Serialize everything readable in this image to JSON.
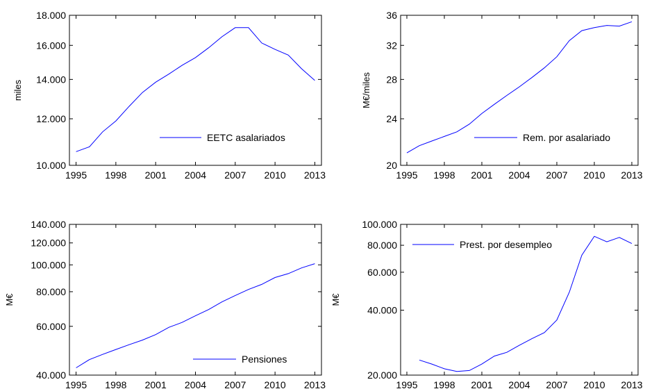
{
  "chart_data": [
    {
      "type": "line",
      "ylabel": "miles",
      "yscale": "log",
      "ylim": [
        10000,
        18000
      ],
      "xlim": [
        1994.5,
        2013.5
      ],
      "y_ticks": [
        {
          "value": 10000,
          "label": "10.000"
        },
        {
          "value": 12000,
          "label": "12.000"
        },
        {
          "value": 14000,
          "label": "14.000"
        },
        {
          "value": 16000,
          "label": "16.000"
        },
        {
          "value": 18000,
          "label": "18.000"
        }
      ],
      "x_ticks": [
        {
          "value": 1995,
          "label": "1995"
        },
        {
          "value": 1998,
          "label": "1998"
        },
        {
          "value": 2001,
          "label": "2001"
        },
        {
          "value": 2004,
          "label": "2004"
        },
        {
          "value": 2007,
          "label": "2007"
        },
        {
          "value": 2010,
          "label": "2010"
        },
        {
          "value": 2013,
          "label": "2013"
        }
      ],
      "legend": "bottom-right",
      "grid": false,
      "x": [
        1995,
        1996,
        1997,
        1998,
        1999,
        2000,
        2001,
        2002,
        2003,
        2004,
        2005,
        2006,
        2007,
        2008,
        2009,
        2010,
        2011,
        2012,
        2013
      ],
      "series": [
        {
          "name": "EETC asalariados",
          "color": "#0000ff",
          "values": [
            10550,
            10750,
            11400,
            11900,
            12600,
            13300,
            13850,
            14300,
            14800,
            15250,
            15850,
            16550,
            17150,
            17150,
            16150,
            15750,
            15400,
            14600,
            13950
          ]
        }
      ]
    },
    {
      "type": "line",
      "ylabel": "M€/miles",
      "yscale": "log",
      "ylim": [
        20,
        36
      ],
      "xlim": [
        1994.5,
        2013.5
      ],
      "y_ticks": [
        {
          "value": 20,
          "label": "20"
        },
        {
          "value": 24,
          "label": "24"
        },
        {
          "value": 28,
          "label": "28"
        },
        {
          "value": 32,
          "label": "32"
        },
        {
          "value": 36,
          "label": "36"
        }
      ],
      "x_ticks": [
        {
          "value": 1995,
          "label": "1995"
        },
        {
          "value": 1998,
          "label": "1998"
        },
        {
          "value": 2001,
          "label": "2001"
        },
        {
          "value": 2004,
          "label": "2004"
        },
        {
          "value": 2007,
          "label": "2007"
        },
        {
          "value": 2010,
          "label": "2010"
        },
        {
          "value": 2013,
          "label": "2013"
        }
      ],
      "legend": "bottom-right",
      "grid": false,
      "x": [
        1995,
        1996,
        1997,
        1998,
        1999,
        2000,
        2001,
        2002,
        2003,
        2004,
        2005,
        2006,
        2007,
        2008,
        2009,
        2010,
        2011,
        2012,
        2013
      ],
      "series": [
        {
          "name": "Rem. por asalariado",
          "color": "#0000ff",
          "values": [
            21.0,
            21.6,
            22.0,
            22.4,
            22.8,
            23.5,
            24.5,
            25.4,
            26.3,
            27.2,
            28.2,
            29.3,
            30.6,
            32.6,
            33.9,
            34.3,
            34.6,
            34.5,
            35.1
          ]
        }
      ]
    },
    {
      "type": "line",
      "ylabel": "M€",
      "yscale": "log",
      "ylim": [
        40000,
        140000
      ],
      "xlim": [
        1994.5,
        2013.5
      ],
      "y_ticks": [
        {
          "value": 40000,
          "label": "40.000"
        },
        {
          "value": 60000,
          "label": "60.000"
        },
        {
          "value": 80000,
          "label": "80.000"
        },
        {
          "value": 100000,
          "label": "100.000"
        },
        {
          "value": 120000,
          "label": "120.000"
        },
        {
          "value": 140000,
          "label": "140.000"
        }
      ],
      "x_ticks": [
        {
          "value": 1995,
          "label": "1995"
        },
        {
          "value": 1998,
          "label": "1998"
        },
        {
          "value": 2001,
          "label": "2001"
        },
        {
          "value": 2004,
          "label": "2004"
        },
        {
          "value": 2007,
          "label": "2007"
        },
        {
          "value": 2010,
          "label": "2010"
        },
        {
          "value": 2013,
          "label": "2013"
        }
      ],
      "legend": "bottom-right",
      "grid": false,
      "x": [
        1995,
        1996,
        1997,
        1998,
        1999,
        2000,
        2001,
        2002,
        2003,
        2004,
        2005,
        2006,
        2007,
        2008,
        2009,
        2010,
        2011,
        2012,
        2013
      ],
      "series": [
        {
          "name": "Pensiones",
          "color": "#0000ff",
          "values": [
            42500,
            45500,
            47500,
            49500,
            51500,
            53500,
            56000,
            59500,
            62000,
            65500,
            69000,
            73500,
            77500,
            81500,
            85000,
            90000,
            93000,
            97500,
            101000
          ]
        }
      ]
    },
    {
      "type": "line",
      "ylabel": "M€",
      "yscale": "log",
      "ylim": [
        20000,
        100000
      ],
      "xlim": [
        1994.5,
        2013.5
      ],
      "y_ticks": [
        {
          "value": 20000,
          "label": "20.000"
        },
        {
          "value": 40000,
          "label": "40.000"
        },
        {
          "value": 60000,
          "label": "60.000"
        },
        {
          "value": 80000,
          "label": "80.000"
        },
        {
          "value": 100000,
          "label": "100.000"
        }
      ],
      "x_ticks": [
        {
          "value": 1995,
          "label": "1995"
        },
        {
          "value": 1998,
          "label": "1998"
        },
        {
          "value": 2001,
          "label": "2001"
        },
        {
          "value": 2004,
          "label": "2004"
        },
        {
          "value": 2007,
          "label": "2007"
        },
        {
          "value": 2010,
          "label": "2010"
        },
        {
          "value": 2013,
          "label": "2013"
        }
      ],
      "legend": "top-left",
      "grid": false,
      "x": [
        1996,
        1997,
        1998,
        1999,
        2000,
        2001,
        2002,
        2003,
        2004,
        2005,
        2006,
        2007,
        2008,
        2009,
        2010,
        2011,
        2012,
        2013
      ],
      "series": [
        {
          "name": "Prest. por desempleo",
          "color": "#0000ff",
          "values": [
            23500,
            22500,
            21400,
            20800,
            21000,
            22500,
            24500,
            25500,
            27500,
            29500,
            31500,
            36000,
            48500,
            72000,
            88000,
            83000,
            87000,
            81500
          ]
        }
      ]
    }
  ]
}
